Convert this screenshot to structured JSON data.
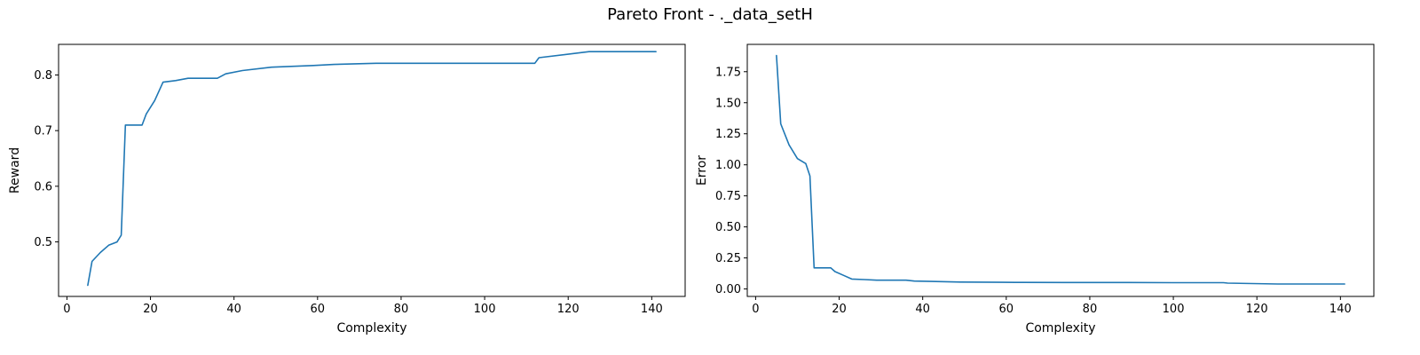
{
  "figure": {
    "title": "Pareto Front - ._data_setH"
  },
  "chart_data": [
    {
      "type": "line",
      "title": "",
      "xlabel": "Complexity",
      "ylabel": "Reward",
      "xlim": [
        -2,
        148
      ],
      "ylim": [
        0.402,
        0.855
      ],
      "xticks": [
        0,
        20,
        40,
        60,
        80,
        100,
        120,
        140
      ],
      "yticks": [
        0.5,
        0.6,
        0.7,
        0.8
      ],
      "grid": false,
      "legend": "none",
      "color": "#1f77b4",
      "series": [
        {
          "x": [
            5,
            6,
            8,
            10,
            12,
            13,
            14,
            16,
            18,
            19,
            21,
            23,
            26,
            29,
            31,
            36,
            38,
            42,
            49,
            59,
            64,
            74,
            85,
            100,
            105,
            110,
            112,
            113,
            125,
            130,
            141
          ],
          "y": [
            0.422,
            0.465,
            0.481,
            0.494,
            0.5,
            0.512,
            0.71,
            0.71,
            0.71,
            0.73,
            0.754,
            0.787,
            0.79,
            0.794,
            0.794,
            0.794,
            0.802,
            0.808,
            0.814,
            0.817,
            0.819,
            0.821,
            0.821,
            0.821,
            0.821,
            0.821,
            0.821,
            0.831,
            0.842,
            0.842,
            0.842
          ]
        }
      ]
    },
    {
      "type": "line",
      "title": "",
      "xlabel": "Complexity",
      "ylabel": "Error",
      "xlim": [
        -2,
        148
      ],
      "ylim": [
        -0.06,
        1.97
      ],
      "xticks": [
        0,
        20,
        40,
        60,
        80,
        100,
        120,
        140
      ],
      "yticks": [
        0.0,
        0.25,
        0.5,
        0.75,
        1.0,
        1.25,
        1.5,
        1.75
      ],
      "grid": false,
      "legend": "none",
      "color": "#1f77b4",
      "series": [
        {
          "x": [
            5,
            6,
            8,
            10,
            12,
            13,
            14,
            16,
            18,
            19,
            21,
            23,
            26,
            29,
            31,
            36,
            38,
            42,
            49,
            59,
            64,
            74,
            85,
            100,
            105,
            110,
            112,
            113,
            125,
            130,
            141
          ],
          "y": [
            1.88,
            1.33,
            1.16,
            1.05,
            1.01,
            0.91,
            0.17,
            0.17,
            0.17,
            0.14,
            0.11,
            0.08,
            0.076,
            0.071,
            0.071,
            0.071,
            0.064,
            0.061,
            0.056,
            0.054,
            0.053,
            0.052,
            0.052,
            0.051,
            0.051,
            0.051,
            0.051,
            0.047,
            0.04,
            0.04,
            0.04
          ]
        }
      ]
    }
  ]
}
